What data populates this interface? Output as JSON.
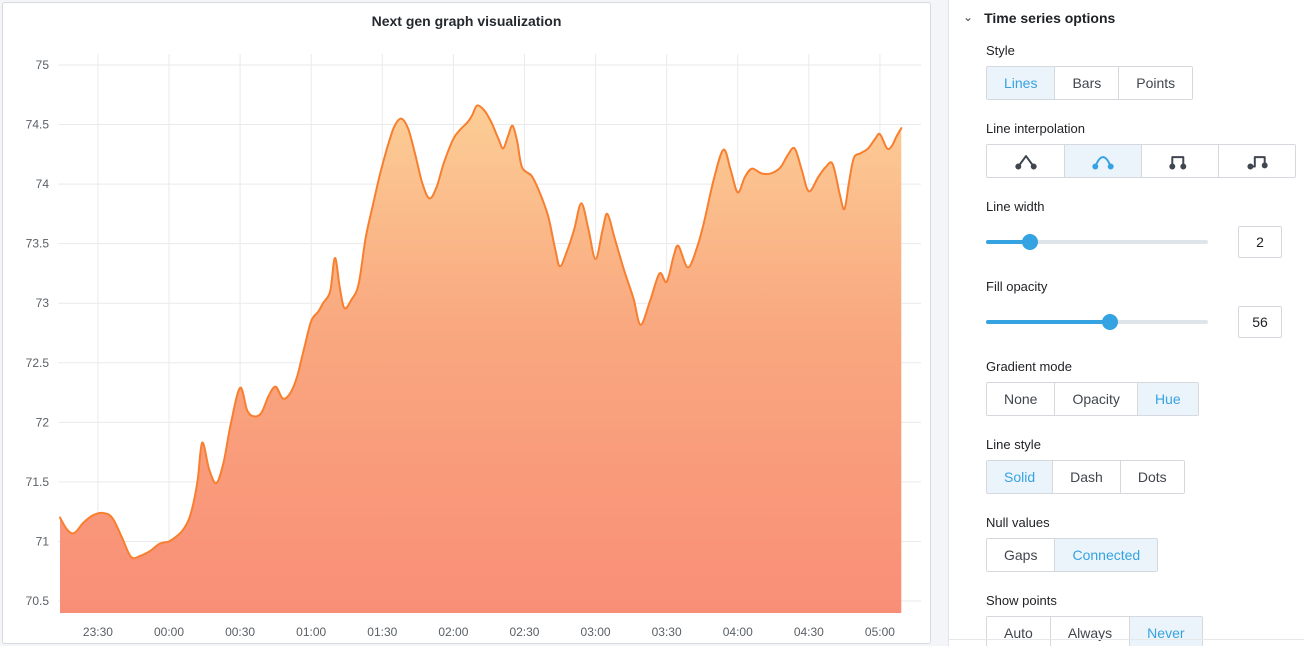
{
  "chart_data": {
    "type": "area",
    "title": "Next gen graph visualization",
    "xlabel": "",
    "ylabel": "",
    "x_ticks": [
      "23:30",
      "00:00",
      "00:30",
      "01:00",
      "01:30",
      "02:00",
      "02:30",
      "03:00",
      "03:30",
      "04:00",
      "04:30",
      "05:00"
    ],
    "y_ticks": [
      75,
      74.5,
      74,
      73.5,
      73,
      72.5,
      72,
      71.5,
      71,
      70.5
    ],
    "ylim": [
      70.4,
      75.1
    ],
    "x_start": "23:14",
    "x_end": "05:11",
    "grid": true,
    "legend": "none",
    "line_color": "#f77f2f",
    "fill_gradient_top": "#fcd097",
    "fill_gradient_mid": "#f9a87f",
    "fill_gradient_bottom": "#f98e77",
    "grid_color": "#e9eaec",
    "tick_color": "#5a6066",
    "points": [
      [
        "23:14",
        71.2
      ],
      [
        "23:17",
        71.1
      ],
      [
        "23:20",
        71.07
      ],
      [
        "23:24",
        71.16
      ],
      [
        "23:28",
        71.22
      ],
      [
        "23:32",
        71.24
      ],
      [
        "23:36",
        71.2
      ],
      [
        "23:40",
        71.04
      ],
      [
        "23:44",
        70.87
      ],
      [
        "23:48",
        70.88
      ],
      [
        "23:52",
        70.92
      ],
      [
        "23:56",
        70.98
      ],
      [
        "00:00",
        71.0
      ],
      [
        "00:03",
        71.04
      ],
      [
        "00:06",
        71.1
      ],
      [
        "00:09",
        71.22
      ],
      [
        "00:12",
        71.5
      ],
      [
        "00:14",
        71.83
      ],
      [
        "00:17",
        71.6
      ],
      [
        "00:20",
        71.49
      ],
      [
        "00:23",
        71.66
      ],
      [
        "00:26",
        71.98
      ],
      [
        "00:30",
        72.29
      ],
      [
        "00:33",
        72.1
      ],
      [
        "00:36",
        72.05
      ],
      [
        "00:39",
        72.08
      ],
      [
        "00:42",
        72.22
      ],
      [
        "00:45",
        72.3
      ],
      [
        "00:48",
        72.2
      ],
      [
        "00:51",
        72.24
      ],
      [
        "00:54",
        72.38
      ],
      [
        "00:57",
        72.62
      ],
      [
        "01:00",
        72.85
      ],
      [
        "01:03",
        72.93
      ],
      [
        "01:05",
        73.0
      ],
      [
        "01:08",
        73.1
      ],
      [
        "01:10",
        73.38
      ],
      [
        "01:12",
        73.14
      ],
      [
        "01:14",
        72.96
      ],
      [
        "01:17",
        73.03
      ],
      [
        "01:20",
        73.16
      ],
      [
        "01:23",
        73.55
      ],
      [
        "01:26",
        73.82
      ],
      [
        "01:29",
        74.08
      ],
      [
        "01:32",
        74.3
      ],
      [
        "01:35",
        74.48
      ],
      [
        "01:38",
        74.55
      ],
      [
        "01:41",
        74.46
      ],
      [
        "01:44",
        74.24
      ],
      [
        "01:47",
        74.0
      ],
      [
        "01:50",
        73.88
      ],
      [
        "01:53",
        73.98
      ],
      [
        "01:56",
        74.18
      ],
      [
        "02:00",
        74.38
      ],
      [
        "02:03",
        74.46
      ],
      [
        "02:06",
        74.52
      ],
      [
        "02:08",
        74.58
      ],
      [
        "02:10",
        74.66
      ],
      [
        "02:13",
        74.62
      ],
      [
        "02:16",
        74.52
      ],
      [
        "02:19",
        74.38
      ],
      [
        "02:21",
        74.3
      ],
      [
        "02:23",
        74.4
      ],
      [
        "02:25",
        74.49
      ],
      [
        "02:27",
        74.35
      ],
      [
        "02:29",
        74.14
      ],
      [
        "02:33",
        74.07
      ],
      [
        "02:36",
        73.95
      ],
      [
        "02:40",
        73.73
      ],
      [
        "02:43",
        73.45
      ],
      [
        "02:45",
        73.31
      ],
      [
        "02:48",
        73.44
      ],
      [
        "02:51",
        73.62
      ],
      [
        "02:54",
        73.84
      ],
      [
        "02:57",
        73.62
      ],
      [
        "03:00",
        73.37
      ],
      [
        "03:03",
        73.62
      ],
      [
        "03:05",
        73.75
      ],
      [
        "03:08",
        73.55
      ],
      [
        "03:12",
        73.28
      ],
      [
        "03:16",
        73.04
      ],
      [
        "03:19",
        72.82
      ],
      [
        "03:23",
        73.02
      ],
      [
        "03:27",
        73.25
      ],
      [
        "03:30",
        73.18
      ],
      [
        "03:33",
        73.4
      ],
      [
        "03:35",
        73.48
      ],
      [
        "03:39",
        73.3
      ],
      [
        "03:43",
        73.48
      ],
      [
        "03:46",
        73.7
      ],
      [
        "03:50",
        74.05
      ],
      [
        "03:54",
        74.29
      ],
      [
        "03:57",
        74.12
      ],
      [
        "04:00",
        73.93
      ],
      [
        "04:03",
        74.06
      ],
      [
        "04:06",
        74.13
      ],
      [
        "04:10",
        74.09
      ],
      [
        "04:14",
        74.09
      ],
      [
        "04:18",
        74.14
      ],
      [
        "04:21",
        74.24
      ],
      [
        "04:24",
        74.3
      ],
      [
        "04:27",
        74.12
      ],
      [
        "04:30",
        73.94
      ],
      [
        "04:34",
        74.06
      ],
      [
        "04:37",
        74.14
      ],
      [
        "04:40",
        74.17
      ],
      [
        "04:43",
        73.92
      ],
      [
        "04:45",
        73.79
      ],
      [
        "04:47",
        74.02
      ],
      [
        "04:49",
        74.22
      ],
      [
        "04:52",
        74.26
      ],
      [
        "04:55",
        74.3
      ],
      [
        "04:58",
        74.38
      ],
      [
        "05:00",
        74.42
      ],
      [
        "05:03",
        74.3
      ],
      [
        "05:05",
        74.32
      ],
      [
        "05:07",
        74.4
      ],
      [
        "05:09",
        74.47
      ]
    ]
  },
  "options_panel": {
    "header": {
      "label": "Time series options",
      "chevron": "collapse-chevron",
      "collapsed": false
    },
    "accent_color": "#35a2e2",
    "selected_bg": "#ecf4fb",
    "sections": [
      {
        "label": "Style",
        "type": "buttons",
        "options": [
          "Lines",
          "Bars",
          "Points"
        ],
        "selected": "Lines"
      },
      {
        "label": "Line interpolation",
        "type": "icon-buttons",
        "options": [
          "linear-interpolation",
          "smooth-interpolation",
          "step-before-interpolation",
          "step-after-interpolation"
        ],
        "selected": "smooth-interpolation"
      },
      {
        "label": "Line width",
        "type": "slider",
        "value": 2,
        "max": 10
      },
      {
        "label": "Fill opacity",
        "type": "slider",
        "value": 56,
        "max": 100
      },
      {
        "label": "Gradient mode",
        "type": "buttons",
        "options": [
          "None",
          "Opacity",
          "Hue"
        ],
        "selected": "Hue"
      },
      {
        "label": "Line style",
        "type": "buttons",
        "options": [
          "Solid",
          "Dash",
          "Dots"
        ],
        "selected": "Solid"
      },
      {
        "label": "Null values",
        "type": "buttons",
        "options": [
          "Gaps",
          "Connected"
        ],
        "selected": "Connected"
      },
      {
        "label": "Show points",
        "type": "buttons",
        "options": [
          "Auto",
          "Always",
          "Never"
        ],
        "selected": "Never"
      }
    ]
  }
}
